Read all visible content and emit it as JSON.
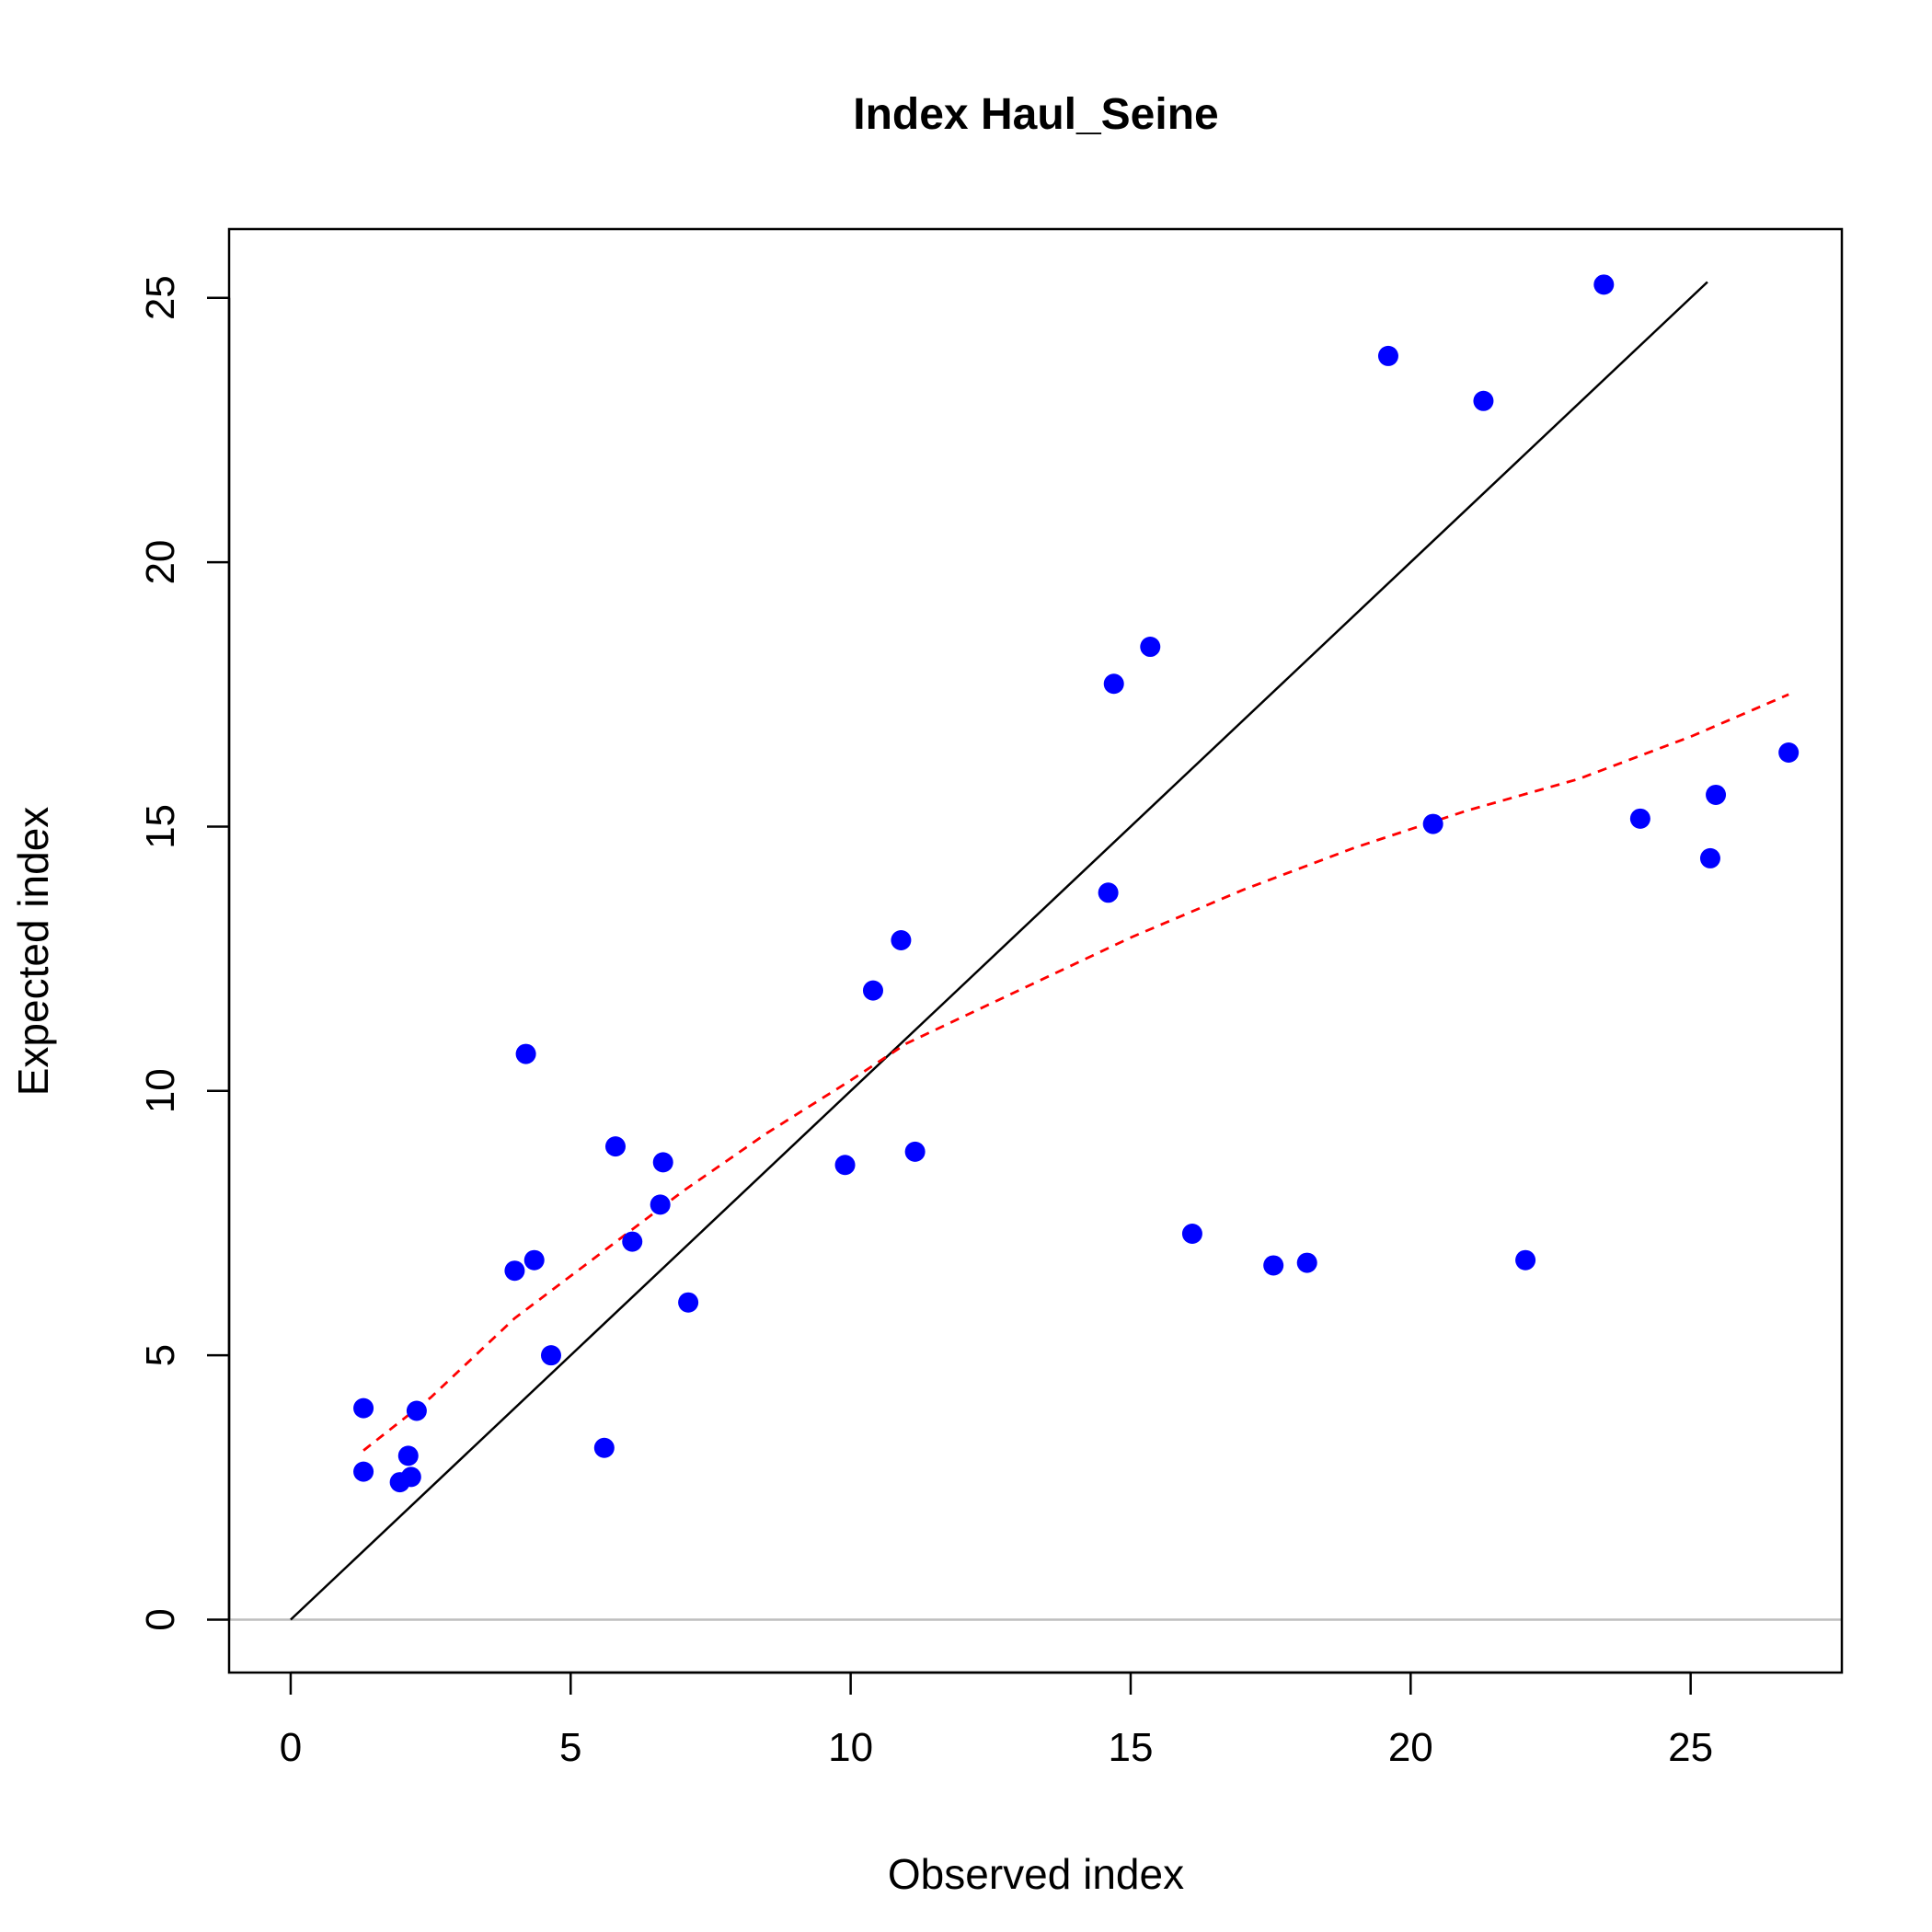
{
  "chart_data": {
    "type": "scatter",
    "title": "Index Haul_Seine",
    "xlabel": "Observed index",
    "ylabel": "Expected index",
    "xlim": [
      -1.1,
      27.7
    ],
    "ylim": [
      -1.0,
      26.3
    ],
    "x_ticks": [
      0,
      5,
      10,
      15,
      20,
      25
    ],
    "y_ticks": [
      0,
      5,
      10,
      15,
      20,
      25
    ],
    "grid": false,
    "colors": {
      "points": "#0000ff",
      "identity_line": "#000000",
      "smooth_line": "#ff0000",
      "zero_line": "#bebebe"
    },
    "points": [
      {
        "x": 1.3,
        "y": 4.0
      },
      {
        "x": 1.3,
        "y": 2.8
      },
      {
        "x": 1.95,
        "y": 2.6
      },
      {
        "x": 2.15,
        "y": 2.7
      },
      {
        "x": 2.1,
        "y": 3.1
      },
      {
        "x": 2.25,
        "y": 3.95
      },
      {
        "x": 4.0,
        "y": 6.6
      },
      {
        "x": 4.35,
        "y": 6.8
      },
      {
        "x": 4.2,
        "y": 10.7
      },
      {
        "x": 4.65,
        "y": 5.0
      },
      {
        "x": 5.6,
        "y": 3.25
      },
      {
        "x": 5.8,
        "y": 8.95
      },
      {
        "x": 6.1,
        "y": 7.15
      },
      {
        "x": 6.6,
        "y": 7.85
      },
      {
        "x": 6.65,
        "y": 8.65
      },
      {
        "x": 7.1,
        "y": 6.0
      },
      {
        "x": 9.9,
        "y": 8.6
      },
      {
        "x": 10.4,
        "y": 11.9
      },
      {
        "x": 10.9,
        "y": 12.85
      },
      {
        "x": 11.15,
        "y": 8.85
      },
      {
        "x": 14.6,
        "y": 13.75
      },
      {
        "x": 14.7,
        "y": 17.7
      },
      {
        "x": 15.35,
        "y": 18.4
      },
      {
        "x": 16.1,
        "y": 7.3
      },
      {
        "x": 17.55,
        "y": 6.7
      },
      {
        "x": 18.15,
        "y": 6.75
      },
      {
        "x": 19.6,
        "y": 23.9
      },
      {
        "x": 20.4,
        "y": 15.05
      },
      {
        "x": 21.3,
        "y": 23.05
      },
      {
        "x": 22.05,
        "y": 6.8
      },
      {
        "x": 23.45,
        "y": 25.25
      },
      {
        "x": 24.1,
        "y": 15.15
      },
      {
        "x": 25.35,
        "y": 14.4
      },
      {
        "x": 25.45,
        "y": 15.6
      },
      {
        "x": 26.75,
        "y": 16.4
      }
    ],
    "identity_line": {
      "x": [
        0,
        25.3
      ],
      "y": [
        0,
        25.3
      ]
    },
    "smooth_line": {
      "x": [
        1.3,
        2.5,
        4.0,
        5.5,
        7.0,
        8.5,
        10.0,
        11.0,
        13.0,
        15.0,
        17.0,
        19.0,
        21.0,
        23.0,
        25.0,
        26.75
      ],
      "y": [
        3.2,
        4.2,
        5.7,
        6.9,
        8.1,
        9.2,
        10.2,
        10.9,
        11.9,
        12.9,
        13.8,
        14.6,
        15.3,
        15.9,
        16.7,
        17.5
      ]
    },
    "zero_line": {
      "y": 0
    }
  }
}
